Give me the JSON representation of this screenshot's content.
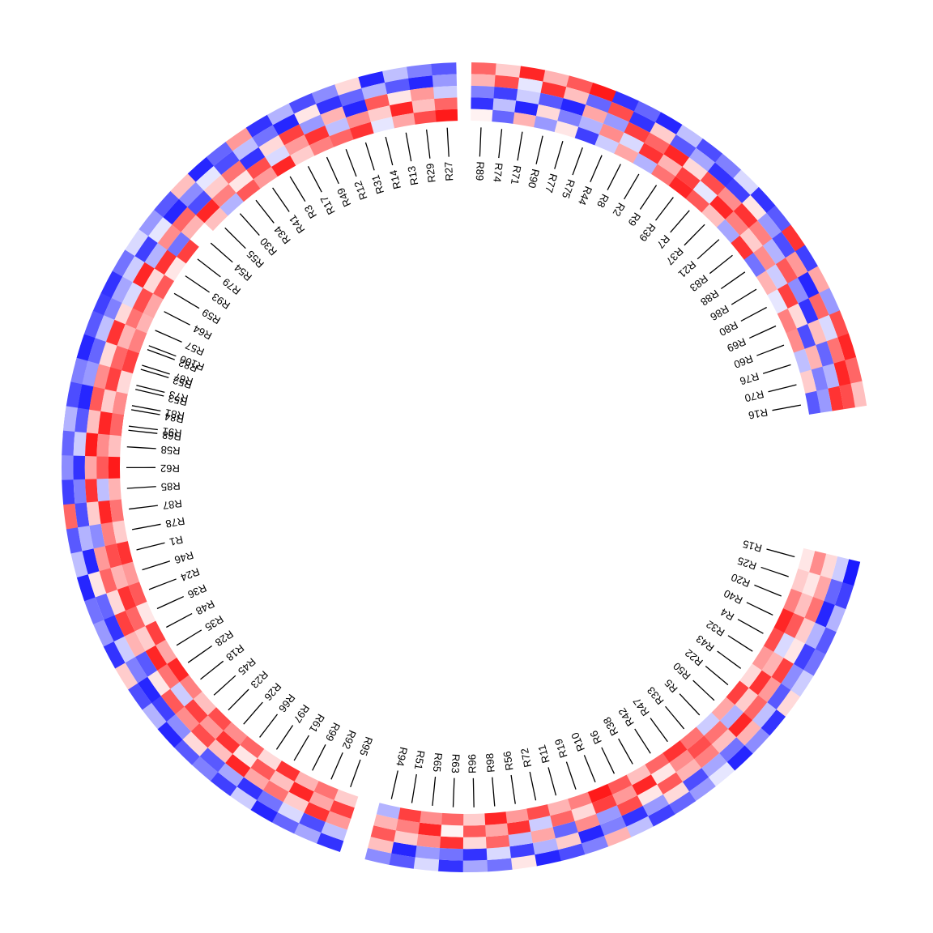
{
  "chart_data": {
    "type": "heatmap",
    "layout": "circular",
    "track_count": 5,
    "color_scale": {
      "low": "#0000FF",
      "mid": "#FFFFFF",
      "high": "#FF0000",
      "domain": [
        -2,
        0,
        2
      ]
    },
    "sectors": [
      {
        "name": "",
        "rows": [
          "R68",
          "R84",
          "R53",
          "R52",
          "R82",
          "R57",
          "R64",
          "R59",
          "R93",
          "R79",
          "R54",
          "R55",
          "R30",
          "R34",
          "R41",
          "R3",
          "R17",
          "R49",
          "R12",
          "R31",
          "R14",
          "R13",
          "R29",
          "R27"
        ],
        "values": [
          [
            -1.0,
            -1.4,
            0.6,
            1.6,
            2.0
          ],
          [
            -0.4,
            -1.3,
            0.7,
            0.4,
            1.6
          ],
          [
            0.2,
            -1.7,
            1.6,
            -0.4,
            0.5
          ],
          [
            -1.3,
            -0.3,
            0.8,
            1.2,
            -0.1
          ],
          [
            -0.7,
            -1.6,
            -0.5,
            0.3,
            1.8
          ],
          [
            -1.5,
            -1.0,
            0.3,
            1.1,
            0.6
          ],
          [
            -1.6,
            -0.7,
            -0.3,
            1.4,
            0.7
          ],
          [
            -1.1,
            -0.4,
            1.7,
            0.3,
            1.3
          ],
          [
            -0.3,
            -1.5,
            -0.6,
            1.6,
            0.2
          ],
          [
            -0.8,
            -0.2,
            0.9,
            -1.1,
            1.5
          ],
          [
            -1.3,
            -1.7,
            1.2,
            0.6,
            0.0
          ],
          [
            0.5,
            -0.9,
            -1.4,
            1.7,
            0.5
          ],
          [
            -1.7,
            -0.2,
            0.4,
            1.0,
            -0.6
          ],
          [
            -1.2,
            -1.4,
            1.1,
            0.2,
            1.3
          ],
          [
            0.8,
            -0.5,
            -1.6,
            1.4,
            0.8
          ],
          [
            -1.6,
            -1.1,
            0.3,
            -0.3,
            1.7
          ],
          [
            -0.6,
            -1.7,
            1.5,
            0.8,
            0.4
          ],
          [
            -1.4,
            0.2,
            -0.8,
            1.6,
            1.0
          ],
          [
            -0.9,
            -1.6,
            0.6,
            -0.5,
            1.2
          ],
          [
            0.3,
            -1.2,
            -1.7,
            0.9,
            1.6
          ],
          [
            -1.7,
            -0.6,
            1.3,
            0.4,
            -0.2
          ],
          [
            -0.5,
            -1.3,
            0.2,
            1.7,
            0.7
          ],
          [
            -1.0,
            -1.7,
            0.8,
            0.5,
            1.4
          ],
          [
            -1.3,
            -0.8,
            -0.4,
            1.2,
            1.8
          ]
        ]
      },
      {
        "name": "",
        "rows": [
          "R89",
          "R74",
          "R71",
          "R90",
          "R77",
          "R75",
          "R44",
          "R8",
          "R2",
          "R9",
          "R39",
          "R7",
          "R37",
          "R21",
          "R83",
          "R88",
          "R86",
          "R80",
          "R69",
          "R60",
          "R76",
          "R70",
          "R16"
        ],
        "values": [
          [
            1.2,
            0.6,
            -1.0,
            -1.6,
            0.1
          ],
          [
            0.4,
            1.4,
            -1.5,
            -0.5,
            -1.2
          ],
          [
            1.7,
            -0.2,
            -0.4,
            -1.7,
            0.6
          ],
          [
            0.6,
            1.6,
            -1.3,
            0.3,
            -0.8
          ],
          [
            1.3,
            0.5,
            -1.7,
            -1.0,
            0.2
          ],
          [
            1.8,
            -1.2,
            0.7,
            -0.6,
            -1.5
          ],
          [
            -1.6,
            1.4,
            -0.8,
            0.9,
            -0.4
          ],
          [
            -1.2,
            -1.6,
            1.5,
            -0.3,
            0.7
          ],
          [
            -1.7,
            0.4,
            1.2,
            1.6,
            -0.6
          ],
          [
            -0.5,
            -1.3,
            1.7,
            0.6,
            1.1
          ],
          [
            -1.4,
            -0.7,
            0.3,
            1.5,
            1.7
          ],
          [
            -1.0,
            -1.6,
            1.4,
            -0.2,
            1.3
          ],
          [
            -0.3,
            -1.5,
            0.9,
            1.7,
            0.5
          ],
          [
            -1.6,
            0.2,
            1.6,
            1.0,
            -0.7
          ],
          [
            -1.3,
            -0.8,
            1.0,
            0.4,
            1.6
          ],
          [
            1.6,
            -1.4,
            -0.6,
            0.9,
            -1.1
          ],
          [
            -1.5,
            0.8,
            1.3,
            -0.4,
            0.6
          ],
          [
            0.7,
            -1.7,
            -0.9,
            1.5,
            -0.2
          ],
          [
            -0.8,
            1.2,
            -1.6,
            0.3,
            1.0
          ],
          [
            1.4,
            -0.3,
            0.5,
            -1.4,
            0.9
          ],
          [
            1.7,
            1.1,
            -1.2,
            0.6,
            -0.5
          ],
          [
            1.2,
            1.7,
            -0.6,
            -1.0,
            0.4
          ],
          [
            0.5,
            1.4,
            1.6,
            -0.8,
            -1.3
          ]
        ]
      },
      {
        "name": "",
        "rows": [
          "R15",
          "R25",
          "R20",
          "R40",
          "R4",
          "R32",
          "R43",
          "R22",
          "R50",
          "R5",
          "R33",
          "R47",
          "R42",
          "R38",
          "R6",
          "R10",
          "R19",
          "R11",
          "R72",
          "R56",
          "R98",
          "R96",
          "R63",
          "R65",
          "R51",
          "R94"
        ],
        "values": [
          [
            -1.8,
            -0.4,
            0.3,
            0.9,
            0.2
          ],
          [
            -1.5,
            -1.2,
            0.7,
            0.2,
            0.4
          ],
          [
            -0.6,
            -1.7,
            1.1,
            0.5,
            1.0
          ],
          [
            -1.3,
            -0.6,
            0.4,
            1.3,
            1.7
          ],
          [
            -1.1,
            -1.5,
            0.2,
            -0.3,
            1.4
          ],
          [
            -0.4,
            -0.9,
            1.5,
            0.6,
            0.8
          ],
          [
            0.3,
            -1.3,
            0.8,
            1.6,
            0.3
          ],
          [
            -1.6,
            -0.5,
            1.2,
            0.4,
            1.5
          ],
          [
            -0.9,
            0.6,
            1.7,
            -0.6,
            0.7
          ],
          [
            -1.7,
            -1.1,
            0.5,
            1.1,
            -0.4
          ],
          [
            -0.2,
            -0.7,
            1.0,
            1.4,
            1.1
          ],
          [
            -0.8,
            -1.4,
            0.6,
            0.9,
            1.6
          ],
          [
            -1.2,
            0.3,
            1.3,
            0.2,
            1.2
          ],
          [
            -1.5,
            -0.8,
            0.2,
            1.7,
            0.5
          ],
          [
            -0.5,
            -1.6,
            1.4,
            0.8,
            1.3
          ],
          [
            0.6,
            -1.0,
            -0.8,
            1.5,
            1.8
          ],
          [
            -1.0,
            -1.7,
            0.9,
            0.3,
            1.0
          ],
          [
            -1.4,
            0.4,
            -1.2,
            1.2,
            0.6
          ],
          [
            -1.7,
            -0.6,
            0.7,
            -0.4,
            1.4
          ],
          [
            0.2,
            -1.5,
            -0.5,
            1.6,
            0.8
          ],
          [
            -1.1,
            -0.3,
            1.2,
            0.7,
            1.7
          ],
          [
            -0.7,
            -1.6,
            0.3,
            1.3,
            0.4
          ],
          [
            -1.6,
            -1.1,
            1.6,
            0.1,
            1.2
          ],
          [
            -0.3,
            -0.8,
            0.9,
            1.7,
            0.9
          ],
          [
            -1.3,
            -1.7,
            0.4,
            1.0,
            1.5
          ],
          [
            -0.9,
            0.5,
            1.3,
            0.6,
            -0.6
          ]
        ]
      },
      {
        "name": "",
        "rows": [
          "R95",
          "R92",
          "R99",
          "R61",
          "R97",
          "R66",
          "R26",
          "R23",
          "R45",
          "R18",
          "R28",
          "R35",
          "R48",
          "R36",
          "R24",
          "R46",
          "R1",
          "R78",
          "R87",
          "R85",
          "R62",
          "R58",
          "R91",
          "R81",
          "R73",
          "R67",
          "R100"
        ],
        "values": [
          [
            -1.6,
            -0.5,
            0.8,
            1.5,
            0.4
          ],
          [
            -0.7,
            -1.4,
            1.6,
            0.7,
            1.1
          ],
          [
            -1.2,
            -0.3,
            0.4,
            1.7,
            0.6
          ],
          [
            -1.7,
            -1.1,
            1.1,
            0.5,
            1.6
          ],
          [
            -0.4,
            -1.6,
            0.7,
            1.3,
            0.3
          ],
          [
            -1.5,
            -0.7,
            1.7,
            0.2,
            1.2
          ],
          [
            -1.0,
            -1.3,
            0.5,
            1.6,
            0.9
          ],
          [
            -1.3,
            0.3,
            1.4,
            0.8,
            1.4
          ],
          [
            -1.7,
            -0.9,
            0.9,
            1.5,
            0.5
          ],
          [
            -0.6,
            -1.5,
            1.3,
            -0.4,
            1.0
          ],
          [
            -1.4,
            -1.7,
            0.2,
            1.1,
            1.7
          ],
          [
            0.4,
            -1.0,
            -1.3,
            1.7,
            0.7
          ],
          [
            -1.6,
            -0.4,
            0.6,
            0.4,
            1.5
          ],
          [
            -0.8,
            -1.6,
            1.5,
            1.2,
            0.2
          ],
          [
            -1.1,
            -1.2,
            0.3,
            1.6,
            1.3
          ],
          [
            -1.7,
            0.2,
            1.2,
            0.6,
            0.8
          ],
          [
            -0.5,
            -1.7,
            0.8,
            1.4,
            1.6
          ],
          [
            -1.3,
            -0.6,
            -0.9,
            1.0,
            0.4
          ],
          [
            1.2,
            -1.4,
            0.4,
            1.7,
            1.1
          ],
          [
            -1.5,
            -1.0,
            1.6,
            -0.5,
            0.6
          ],
          [
            -0.9,
            -1.6,
            0.7,
            1.3,
            1.8
          ],
          [
            -1.2,
            -0.4,
            1.8,
            0.9,
            0.5
          ],
          [
            -0.6,
            -1.3,
            0.5,
            1.7,
            1.2
          ],
          [
            -1.4,
            -1.7,
            1.3,
            0.4,
            0.9
          ],
          [
            -1.0,
            -0.8,
            0.9,
            1.5,
            0.3
          ],
          [
            -1.7,
            -1.2,
            0.3,
            1.2,
            1.5
          ],
          [
            -1.3,
            -0.5,
            1.6,
            0.6,
            1.0
          ]
        ]
      }
    ]
  }
}
